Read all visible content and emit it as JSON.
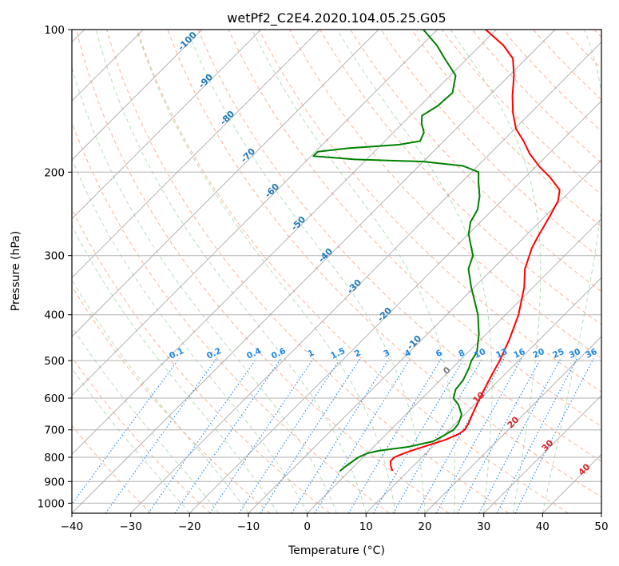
{
  "chart_data": {
    "type": "line",
    "subtype": "skew-T log-P diagram",
    "title": "wetPf2_C2E4.2020.104.05.25.G05",
    "xlabel": "Temperature (°C)",
    "ylabel": "Pressure (hPa)",
    "xlim": [
      -40,
      50
    ],
    "ylim": [
      1050,
      100
    ],
    "yscale": "log",
    "grid": true,
    "xticks": [
      -40,
      -30,
      -20,
      -10,
      0,
      10,
      20,
      30,
      40,
      50
    ],
    "yticks": [
      100,
      200,
      300,
      400,
      500,
      600,
      700,
      800,
      900,
      1000
    ],
    "series": [
      {
        "role": "temperature",
        "color": "#ff0000",
        "points": [
          [
            855,
            7.3
          ],
          [
            835,
            6.2
          ],
          [
            815,
            5.3
          ],
          [
            800,
            5.3
          ],
          [
            790,
            5.9
          ],
          [
            775,
            7.0
          ],
          [
            755,
            9.0
          ],
          [
            735,
            11.0
          ],
          [
            715,
            12.3
          ],
          [
            700,
            12.6
          ],
          [
            680,
            12.2
          ],
          [
            650,
            11.3
          ],
          [
            620,
            10.4
          ],
          [
            590,
            9.5
          ],
          [
            560,
            8.6
          ],
          [
            530,
            7.7
          ],
          [
            500,
            6.8
          ],
          [
            450,
            4.8
          ],
          [
            400,
            2.2
          ],
          [
            350,
            -1.5
          ],
          [
            320,
            -4.5
          ],
          [
            300,
            -6.0
          ],
          [
            290,
            -6.8
          ],
          [
            275,
            -7.7
          ],
          [
            260,
            -8.5
          ],
          [
            245,
            -9.4
          ],
          [
            230,
            -10.4
          ],
          [
            218,
            -12.0
          ],
          [
            205,
            -15.8
          ],
          [
            195,
            -19.3
          ],
          [
            183,
            -23.2
          ],
          [
            172,
            -26.4
          ],
          [
            162,
            -29.8
          ],
          [
            150,
            -33.0
          ],
          [
            138,
            -36.0
          ],
          [
            125,
            -39.2
          ],
          [
            115,
            -42.3
          ],
          [
            108,
            -46.1
          ],
          [
            100,
            -51.8
          ]
        ]
      },
      {
        "role": "dewpoint",
        "color": "#008000",
        "points": [
          [
            855,
            -1.6
          ],
          [
            835,
            -1.4
          ],
          [
            800,
            -0.8
          ],
          [
            785,
            0.0
          ],
          [
            775,
            1.5
          ],
          [
            760,
            6.0
          ],
          [
            740,
            9.2
          ],
          [
            720,
            10.0
          ],
          [
            700,
            10.7
          ],
          [
            680,
            10.5
          ],
          [
            650,
            9.5
          ],
          [
            620,
            7.3
          ],
          [
            600,
            5.3
          ],
          [
            575,
            4.2
          ],
          [
            550,
            3.9
          ],
          [
            520,
            2.9
          ],
          [
            500,
            2.0
          ],
          [
            480,
            1.5
          ],
          [
            440,
            -1.2
          ],
          [
            400,
            -4.7
          ],
          [
            350,
            -10.5
          ],
          [
            320,
            -14.1
          ],
          [
            300,
            -15.6
          ],
          [
            280,
            -18.5
          ],
          [
            270,
            -20.0
          ],
          [
            255,
            -21.7
          ],
          [
            240,
            -22.6
          ],
          [
            225,
            -24.5
          ],
          [
            210,
            -27.1
          ],
          [
            200,
            -28.8
          ],
          [
            194,
            -32.5
          ],
          [
            190,
            -40.0
          ],
          [
            188,
            -52.0
          ],
          [
            185,
            -59.6
          ],
          [
            181,
            -59.6
          ],
          [
            178,
            -55.0
          ],
          [
            175,
            -47.0
          ],
          [
            172,
            -44.0
          ],
          [
            165,
            -44.8
          ],
          [
            158,
            -46.7
          ],
          [
            152,
            -48.0
          ],
          [
            145,
            -47.0
          ],
          [
            136,
            -46.7
          ],
          [
            125,
            -49.1
          ],
          [
            115,
            -53.9
          ],
          [
            108,
            -57.4
          ],
          [
            100,
            -62.4
          ]
        ]
      }
    ],
    "reference_lines": [
      {
        "kind": "dry adiabats",
        "unit": "°C",
        "values": [
          -100,
          -90,
          -80,
          -70,
          -60,
          -50,
          -40,
          -30,
          -20,
          -10,
          0,
          10,
          20,
          30,
          40
        ]
      },
      {
        "kind": "mixing ratio lines",
        "unit": "g/kg",
        "values": [
          "0.1",
          "0.2",
          "0.4",
          "0.6",
          "1",
          "1.5",
          "2",
          "3",
          "4",
          "6",
          "8",
          "10",
          "13",
          "16",
          "20",
          "25",
          "30",
          "36"
        ]
      }
    ]
  },
  "colors": {
    "temperature": "#ff0000",
    "dewpoint": "#008000",
    "dry_adiabat": "#f4a582",
    "moist_adiabat": "#2ca02c",
    "mixing_ratio": "#1e88e5",
    "skewed_isotherm": "#000000",
    "isobar_grid": "#b0b0b0",
    "adiabat_label_cold": "#1f77b4",
    "adiabat_label_warm": "#d62728",
    "adiabat_label_zero": "#7f7f7f"
  }
}
